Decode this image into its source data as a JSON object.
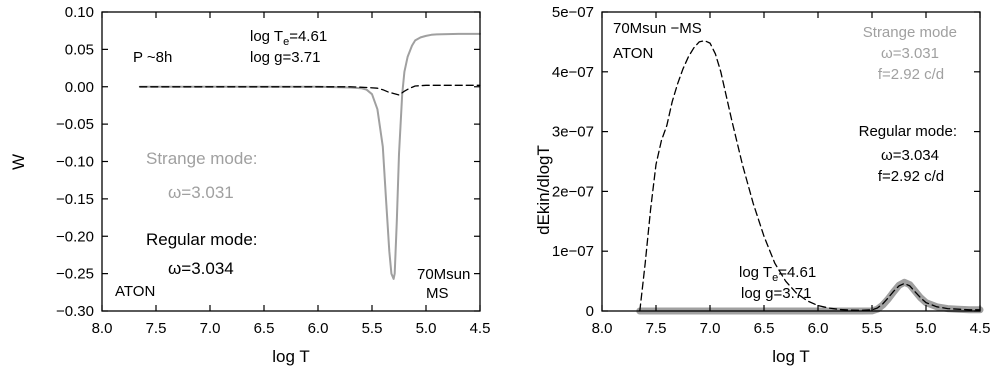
{
  "chart_data": [
    {
      "type": "line",
      "xlabel": "log T",
      "ylabel": "W",
      "xlim": [
        8.0,
        4.5
      ],
      "ylim": [
        -0.3,
        0.1
      ],
      "xticks": [
        "8.0",
        "7.5",
        "7.0",
        "6.5",
        "6.0",
        "5.5",
        "5.0",
        "4.5"
      ],
      "yticks": [
        "0.10",
        "0.05",
        "0.00",
        "−0.05",
        "−0.10",
        "−0.15",
        "−0.20",
        "−0.25",
        "−0.30"
      ],
      "grid": false,
      "colors": {
        "strange": "#a0a0a0",
        "regular": "#000000"
      },
      "annotations": {
        "period": "P ~8h",
        "teff_prefix": "log T",
        "teff_sub": "e",
        "teff_suffix": "=4.61",
        "logg": "log g=3.71",
        "strange_title": "Strange mode:",
        "strange_omega": "ω=3.031",
        "regular_title": "Regular mode:",
        "regular_omega": "ω=3.034",
        "code": "ATON",
        "model_1": "70Msun",
        "model_2": "MS"
      },
      "series": [
        {
          "style": "gray-solid",
          "x": [
            7.65,
            7.0,
            6.5,
            6.0,
            5.7,
            5.6,
            5.55,
            5.5,
            5.45,
            5.4,
            5.37,
            5.34,
            5.32,
            5.3,
            5.29,
            5.27,
            5.25,
            5.22,
            5.2,
            5.17,
            5.13,
            5.1,
            5.05,
            5.0,
            4.95,
            4.9,
            4.85,
            4.8,
            4.7,
            4.6,
            4.5
          ],
          "y": [
            0.0,
            0.0,
            0.0,
            0.0,
            -0.001,
            -0.002,
            -0.004,
            -0.01,
            -0.03,
            -0.08,
            -0.15,
            -0.22,
            -0.25,
            -0.257,
            -0.25,
            -0.18,
            -0.09,
            -0.01,
            0.02,
            0.04,
            0.055,
            0.062,
            0.066,
            0.068,
            0.0695,
            0.07,
            0.0703,
            0.0705,
            0.0707,
            0.0707,
            0.0707
          ]
        },
        {
          "style": "black-dashed",
          "x": [
            7.65,
            7.0,
            6.5,
            6.0,
            5.7,
            5.55,
            5.45,
            5.4,
            5.35,
            5.3,
            5.25,
            5.2,
            5.15,
            5.1,
            5.0,
            4.9,
            4.8,
            4.7,
            4.6,
            4.5
          ],
          "y": [
            0.0,
            0.0,
            0.0,
            0.0,
            0.0,
            -0.001,
            -0.002,
            -0.004,
            -0.007,
            -0.009,
            -0.011,
            -0.006,
            -0.002,
            0.001,
            0.002,
            0.002,
            0.002,
            0.002,
            0.002,
            0.002
          ]
        }
      ]
    },
    {
      "type": "line",
      "xlabel": "log T",
      "ylabel": "dEkin/dlogT",
      "xlim": [
        8.0,
        4.5
      ],
      "ylim": [
        0,
        5e-07
      ],
      "xticks": [
        "8.0",
        "7.5",
        "7.0",
        "6.5",
        "6.0",
        "5.5",
        "5.0",
        "4.5"
      ],
      "yticks": [
        "5e−07",
        "4e−07",
        "3e−07",
        "2e−07",
        "1e−07",
        "0"
      ],
      "grid": false,
      "colors": {
        "strange": "#a0a0a0",
        "regular": "#000000"
      },
      "annotations": {
        "model": "70Msun −MS",
        "code": "ATON",
        "strange_title": "Strange mode",
        "strange_omega": "ω=3.031",
        "strange_freq": "f=2.92 c/d",
        "regular_title": "Regular mode:",
        "regular_omega": "ω=3.034",
        "regular_freq": "f=2.92 c/d",
        "teff_prefix": "log T",
        "teff_sub": "e",
        "teff_suffix": "=4.61",
        "logg": "log g=3.71"
      },
      "series": [
        {
          "style": "gray-thick",
          "x": [
            7.65,
            7.0,
            6.5,
            6.0,
            5.6,
            5.5,
            5.45,
            5.4,
            5.35,
            5.3,
            5.25,
            5.2,
            5.15,
            5.1,
            5.05,
            5.0,
            4.9,
            4.8,
            4.7,
            4.6,
            4.5
          ],
          "y": [
            0.0,
            0.0,
            0.0,
            0.0,
            0.0,
            1e-10,
            3e-09,
            1e-08,
            2e-08,
            3.2e-08,
            4.3e-08,
            4.8e-08,
            4.4e-08,
            3.3e-08,
            2.2e-08,
            1.4e-08,
            7e-09,
            4e-09,
            3e-09,
            2e-09,
            2e-09
          ]
        },
        {
          "style": "black-dashed",
          "x": [
            7.65,
            7.6,
            7.55,
            7.5,
            7.45,
            7.4,
            7.35,
            7.3,
            7.25,
            7.2,
            7.15,
            7.1,
            7.05,
            7.0,
            6.95,
            6.9,
            6.85,
            6.8,
            6.7,
            6.6,
            6.5,
            6.4,
            6.3,
            6.2,
            6.1,
            6.0,
            5.9,
            5.8,
            5.7,
            5.6,
            5.5,
            5.45,
            5.4,
            5.35,
            5.3,
            5.25,
            5.2,
            5.15,
            5.1,
            5.05,
            5.0,
            4.9,
            4.8,
            4.7,
            4.6,
            4.5
          ],
          "y": [
            0.0,
            8e-08,
            1.7e-07,
            2.45e-07,
            2.85e-07,
            3.1e-07,
            3.5e-07,
            3.8e-07,
            4.05e-07,
            4.25e-07,
            4.4e-07,
            4.5e-07,
            4.52e-07,
            4.48e-07,
            4.3e-07,
            4e-07,
            3.6e-07,
            3.2e-07,
            2.45e-07,
            1.8e-07,
            1.25e-07,
            8e-08,
            5e-08,
            3e-08,
            1.7e-08,
            9e-09,
            5e-09,
            2.5e-09,
            1.5e-09,
            1e-09,
            2e-09,
            5e-09,
            1.2e-08,
            2.2e-08,
            3.3e-08,
            4.2e-08,
            4.6e-08,
            4.2e-08,
            3.2e-08,
            2.2e-08,
            1.4e-08,
            7e-09,
            4e-09,
            3e-09,
            2e-09,
            2e-09
          ]
        }
      ]
    }
  ]
}
